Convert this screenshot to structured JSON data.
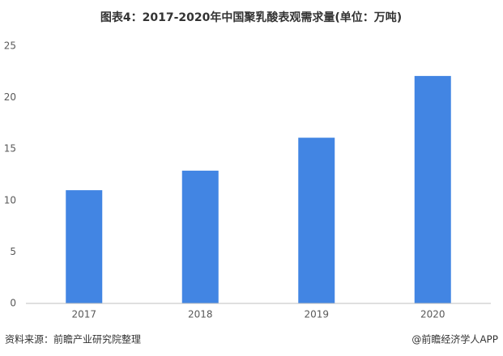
{
  "chart_data": {
    "type": "bar",
    "title": "图表4：2017-2020年中国聚乳酸表观需求量(单位：万吨)",
    "categories": [
      "2017",
      "2018",
      "2019",
      "2020"
    ],
    "values": [
      11,
      12.9,
      16.1,
      22.1
    ],
    "color": "#4285e3",
    "ylim": [
      0,
      25
    ],
    "yticks": [
      0,
      5,
      10,
      15,
      20,
      25
    ],
    "grid": false,
    "source": "资料来源：前瞻产业研究院整理",
    "credit": "@前瞻经济学人APP"
  }
}
